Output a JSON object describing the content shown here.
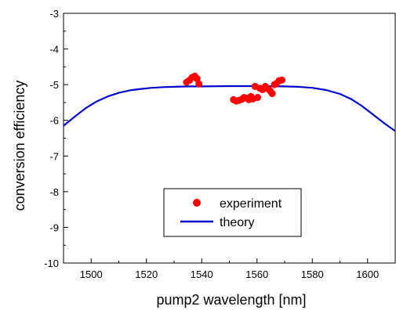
{
  "chart_data": {
    "type": "scatter",
    "xlabel": "pump2 wavelength [nm]",
    "ylabel": "conversion efficiency",
    "xlim": [
      1490,
      1610
    ],
    "ylim": [
      -10,
      -3
    ],
    "x_ticks": [
      1500,
      1520,
      1540,
      1560,
      1580,
      1600
    ],
    "y_ticks": [
      -10,
      -9,
      -8,
      -7,
      -6,
      -5,
      -4,
      -3
    ],
    "grid": false,
    "legend_position": "bottom-center",
    "series": [
      {
        "name": "experiment",
        "kind": "scatter",
        "color": "#ff0000",
        "points": [
          [
            1534.5,
            -4.93
          ],
          [
            1535.5,
            -4.88
          ],
          [
            1536.5,
            -4.8
          ],
          [
            1537.5,
            -4.76
          ],
          [
            1538.3,
            -4.83
          ],
          [
            1539.0,
            -4.98
          ],
          [
            1551.5,
            -5.42
          ],
          [
            1552.5,
            -5.46
          ],
          [
            1553.5,
            -5.44
          ],
          [
            1554.5,
            -5.41
          ],
          [
            1555.3,
            -5.36
          ],
          [
            1556.3,
            -5.38
          ],
          [
            1557.0,
            -5.42
          ],
          [
            1557.8,
            -5.33
          ],
          [
            1558.5,
            -5.4
          ],
          [
            1559.3,
            -5.05
          ],
          [
            1560.2,
            -5.36
          ],
          [
            1561.0,
            -5.1
          ],
          [
            1562.0,
            -5.14
          ],
          [
            1563.0,
            -5.05
          ],
          [
            1564.0,
            -5.12
          ],
          [
            1564.8,
            -5.18
          ],
          [
            1565.5,
            -5.25
          ],
          [
            1566.3,
            -5.0
          ],
          [
            1567.0,
            -4.97
          ],
          [
            1568.0,
            -4.89
          ],
          [
            1569.0,
            -4.87
          ]
        ]
      },
      {
        "name": "theory",
        "kind": "line",
        "color": "#0000cc",
        "points": [
          [
            1490,
            -6.15
          ],
          [
            1494,
            -5.9
          ],
          [
            1498,
            -5.66
          ],
          [
            1502,
            -5.47
          ],
          [
            1506,
            -5.33
          ],
          [
            1510,
            -5.23
          ],
          [
            1514,
            -5.16
          ],
          [
            1518,
            -5.12
          ],
          [
            1522,
            -5.09
          ],
          [
            1526,
            -5.07
          ],
          [
            1530,
            -5.06
          ],
          [
            1535,
            -5.05
          ],
          [
            1540,
            -5.05
          ],
          [
            1550,
            -5.04
          ],
          [
            1560,
            -5.04
          ],
          [
            1570,
            -5.05
          ],
          [
            1575,
            -5.06
          ],
          [
            1580,
            -5.09
          ],
          [
            1585,
            -5.15
          ],
          [
            1590,
            -5.26
          ],
          [
            1594,
            -5.4
          ],
          [
            1598,
            -5.6
          ],
          [
            1602,
            -5.84
          ],
          [
            1606,
            -6.08
          ],
          [
            1610,
            -6.3
          ]
        ]
      }
    ]
  }
}
